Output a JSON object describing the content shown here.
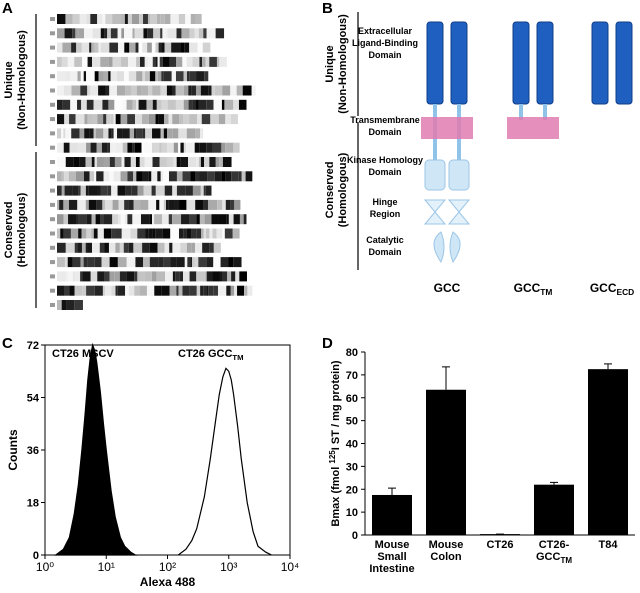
{
  "panel_a": {
    "letter": "A",
    "brackets": [
      [
        "Unique",
        "(Non-Homologous)"
      ],
      [
        "Conserved",
        "(Homologous)"
      ]
    ]
  },
  "panel_b": {
    "letter": "B",
    "brackets": [
      [
        "Unique",
        "(Non-Homologous)"
      ],
      [
        "Conserved",
        "(Homologous)"
      ]
    ],
    "domains": [
      [
        "Extracellular",
        "Ligand-Binding",
        "Domain"
      ],
      [
        "Transmembrane",
        "Domain"
      ],
      [
        "Kinase Homology",
        "Domain"
      ],
      [
        "Hinge",
        "Region"
      ],
      [
        "Catalytic",
        "Domain"
      ]
    ],
    "constructs": [
      {
        "text": "GCC"
      },
      {
        "text": "GCC",
        "sub": "TM"
      },
      {
        "text": "GCC",
        "sub": "ECD"
      }
    ]
  },
  "chart_data": [
    {
      "type": "histogram_line",
      "letter": "C",
      "xlabel": "Alexa 488",
      "ylabel": "Counts",
      "xlog": true,
      "xlim": [
        1,
        10000
      ],
      "ylim": [
        0,
        72
      ],
      "xticks": [
        {
          "value": 1,
          "label": "10⁰"
        },
        {
          "value": 10,
          "label": "10¹"
        },
        {
          "value": 100,
          "label": "10²"
        },
        {
          "value": 1000,
          "label": "10³"
        },
        {
          "value": 10000,
          "label": "10⁴"
        }
      ],
      "yticks": [
        0,
        18,
        36,
        54,
        72
      ],
      "annotations": [
        {
          "text": "CT26 MSCV"
        },
        {
          "text": "CT26 GCC",
          "sub": "TM"
        }
      ],
      "series": [
        {
          "color": "#000000",
          "filled": true,
          "x": [
            1.5,
            2,
            2.5,
            3,
            3.5,
            4,
            4.5,
            5,
            5.5,
            6,
            6.5,
            7,
            8,
            9,
            10,
            12,
            14,
            17,
            20,
            25,
            30
          ],
          "values": [
            0,
            2,
            6,
            14,
            24,
            36,
            48,
            60,
            68,
            72,
            70,
            66,
            56,
            45,
            36,
            22,
            13,
            6,
            3,
            1,
            0
          ]
        },
        {
          "color": "#000000",
          "filled": false,
          "x": [
            150,
            200,
            250,
            300,
            400,
            500,
            600,
            700,
            800,
            900,
            1000,
            1100,
            1200,
            1400,
            1600,
            2000,
            2500,
            3000,
            4000,
            5000
          ],
          "values": [
            0,
            2,
            5,
            9,
            20,
            33,
            45,
            55,
            61,
            64,
            63,
            60,
            55,
            44,
            33,
            18,
            8,
            3,
            1,
            0
          ]
        }
      ]
    },
    {
      "type": "bar",
      "letter": "D",
      "color": "#000000",
      "ylabel": {
        "before": "Bmax (fmol ",
        "sup": "125",
        "after": "I ST / mg protein)"
      },
      "categories": [
        "Mouse Small Intestine",
        "Mouse Colon",
        "CT26",
        {
          "text": "CT26-GCC",
          "sub": "TM"
        },
        "T84"
      ],
      "values": [
        17.5,
        63.5,
        0.4,
        22,
        72.5
      ],
      "errors": [
        3,
        10,
        0,
        1,
        2.3
      ],
      "ylim": [
        0,
        80
      ],
      "yticks": [
        0,
        10,
        20,
        30,
        40,
        50,
        60,
        70,
        80
      ]
    }
  ]
}
